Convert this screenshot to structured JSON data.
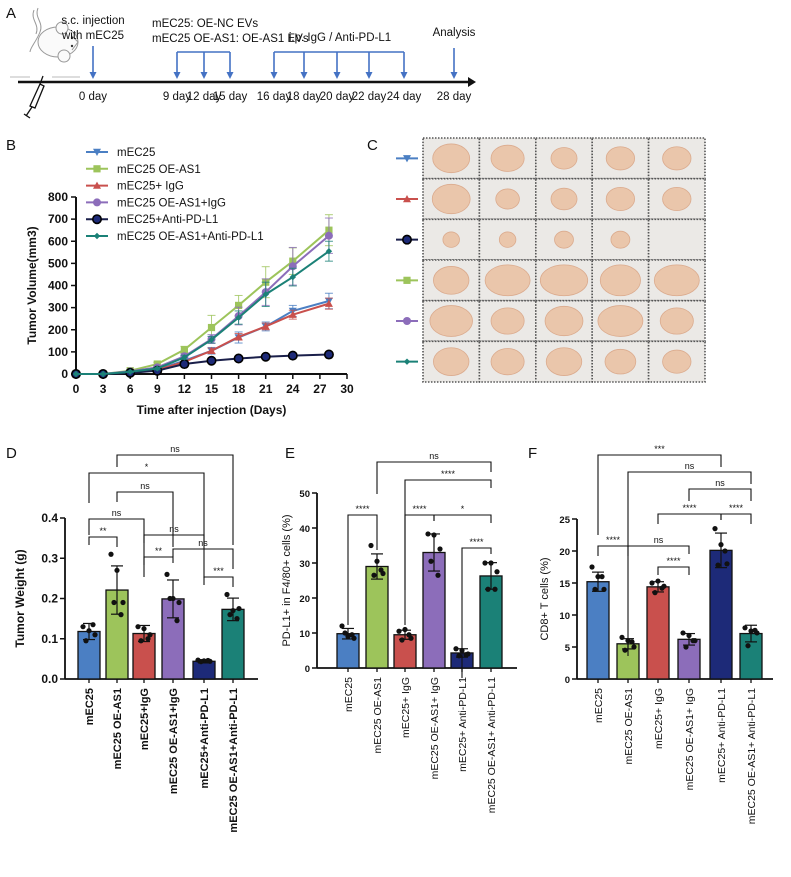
{
  "panels": {
    "a": "A",
    "b": "B",
    "c": "C",
    "d": "D",
    "e": "E",
    "f": "F"
  },
  "timeline": {
    "injection_label": [
      "s.c. injection",
      "with mEC25"
    ],
    "ev_label": [
      "mEC25: OE-NC EVs",
      "mEC25 OE-AS1: OE-AS1 EVs"
    ],
    "treatment_label": "i.p. IgG / Anti-PD-L1",
    "analysis_label": "Analysis",
    "days": [
      "0 day",
      "9 day",
      "12 day",
      "15 day",
      "16 day",
      "18 day",
      "20 day",
      "22 day",
      "24 day",
      "28 day"
    ],
    "arrow_color": "#4472c4"
  },
  "colors": {
    "mEC25": "#4b7fc3",
    "OE-AS1": "#9dc45b",
    "IgG": "#c9504d",
    "OE-AS1+IgG": "#8c6dba",
    "Anti": "#1d2a78",
    "OE-AS1+Anti": "#1b8177"
  },
  "chart_data": [
    {
      "type": "line",
      "panel": "B",
      "xlabel": "Time after injection (Days)",
      "ylabel": "Tumor Volume(mm3)",
      "xlim": [
        0,
        30
      ],
      "ylim": [
        0,
        800
      ],
      "xticks": [
        "0",
        "3",
        "6",
        "9",
        "12",
        "15",
        "18",
        "21",
        "24",
        "27",
        "30"
      ],
      "yticks": [
        "0",
        "100",
        "200",
        "300",
        "400",
        "500",
        "600",
        "700",
        "800"
      ],
      "legend": "top-left",
      "x": [
        0,
        3,
        6,
        9,
        12,
        15,
        18,
        21,
        24,
        28
      ],
      "series": [
        {
          "name": "mEC25",
          "marker": "triangle-down",
          "color": "#4b7fc3",
          "values": [
            0,
            0,
            8,
            20,
            60,
            105,
            165,
            215,
            285,
            330
          ],
          "sd": [
            0,
            0,
            3,
            6,
            12,
            15,
            25,
            20,
            25,
            35
          ]
        },
        {
          "name": "mEC25 OE-AS1",
          "marker": "square",
          "color": "#9dc45b",
          "values": [
            0,
            0,
            15,
            45,
            110,
            210,
            310,
            415,
            510,
            650
          ],
          "sd": [
            0,
            0,
            4,
            8,
            15,
            55,
            45,
            70,
            60,
            70
          ]
        },
        {
          "name": "mEC25+ IgG",
          "marker": "triangle-up",
          "color": "#c9504d",
          "values": [
            0,
            0,
            6,
            18,
            55,
            105,
            168,
            215,
            268,
            318
          ],
          "sd": [
            0,
            0,
            3,
            5,
            10,
            12,
            15,
            15,
            20,
            25
          ]
        },
        {
          "name": "mEC25 OE-AS1+IgG",
          "marker": "circle",
          "color": "#8c6dba",
          "values": [
            0,
            0,
            12,
            30,
            80,
            158,
            262,
            370,
            487,
            625
          ],
          "sd": [
            0,
            0,
            4,
            8,
            12,
            20,
            40,
            60,
            85,
            80
          ]
        },
        {
          "name": "mEC25+Anti-PD-L1",
          "marker": "circle-dark",
          "color": "#1a1f4a",
          "values": [
            0,
            0,
            5,
            15,
            45,
            60,
            70,
            78,
            83,
            88
          ],
          "sd": [
            0,
            0,
            2,
            4,
            8,
            8,
            8,
            8,
            8,
            8
          ]
        },
        {
          "name": "mEC25 OE-AS1+Anti-PD-L1",
          "marker": "diamond",
          "color": "#1b8177",
          "values": [
            0,
            0,
            10,
            25,
            75,
            155,
            255,
            360,
            438,
            555
          ],
          "sd": [
            0,
            0,
            3,
            6,
            10,
            15,
            30,
            55,
            40,
            45
          ]
        }
      ]
    },
    {
      "type": "bar",
      "panel": "D",
      "ylabel": "Tumor Weight (g)",
      "ylim": [
        0,
        0.4
      ],
      "yticks": [
        "0.0",
        "0.1",
        "0.2",
        "0.3",
        "0.4"
      ],
      "categories": [
        "mEC25",
        "mEC25 OE-AS1",
        "mEC25+IgG",
        "mEC25 OE-AS1+IgG",
        "mEC25+Anti-PD-L1",
        "mEC25 OE-AS1+Anti-PD-L1"
      ],
      "values": [
        0.118,
        0.221,
        0.113,
        0.199,
        0.044,
        0.173
      ],
      "sd": [
        0.02,
        0.06,
        0.02,
        0.047,
        0.004,
        0.028
      ],
      "points": [
        [
          0.13,
          0.12,
          0.11,
          0.095,
          0.135
        ],
        [
          0.31,
          0.27,
          0.19,
          0.19,
          0.16
        ],
        [
          0.13,
          0.125,
          0.11,
          0.095,
          0.1
        ],
        [
          0.26,
          0.2,
          0.19,
          0.2,
          0.145
        ],
        [
          0.047,
          0.045,
          0.044,
          0.043,
          0.046
        ],
        [
          0.21,
          0.17,
          0.175,
          0.16,
          0.15
        ]
      ],
      "significance": [
        {
          "pair": [
            1,
            5
          ],
          "label": "ns"
        },
        {
          "pair": [
            0,
            4
          ],
          "label": "*"
        },
        {
          "pair": [
            1,
            3
          ],
          "label": "ns"
        },
        {
          "pair": [
            0,
            2
          ],
          "label": "ns"
        },
        {
          "pair": [
            2,
            4
          ],
          "label": "ns"
        },
        {
          "pair": [
            0,
            1
          ],
          "label": "**"
        },
        {
          "pair": [
            3,
            5
          ],
          "label": "ns"
        },
        {
          "pair": [
            2,
            3
          ],
          "label": "**"
        },
        {
          "pair": [
            4,
            5
          ],
          "label": "***"
        }
      ]
    },
    {
      "type": "bar",
      "panel": "E",
      "ylabel": "PD-L1+ in F4/80+ cells (%)",
      "ylim": [
        0,
        50
      ],
      "yticks": [
        "0",
        "10",
        "20",
        "30",
        "40",
        "50"
      ],
      "categories": [
        "mEC25",
        "mEC25 OE-AS1",
        "mEC25+ IgG",
        "mEC25 OE-AS1+ IgG",
        "mEC25+ Anti-PD-L1",
        "mEC25 OE-AS1+ Anti-PD-L1"
      ],
      "values": [
        9.8,
        29.0,
        9.5,
        33.0,
        4.3,
        26.3
      ],
      "sd": [
        1.5,
        3.6,
        1.3,
        5.3,
        1.2,
        3.8
      ],
      "points": [
        [
          12,
          9,
          8.5,
          10,
          9.5
        ],
        [
          35,
          30.5,
          27,
          26.5,
          28
        ],
        [
          10.5,
          11,
          8.5,
          8,
          9.5
        ],
        [
          38.3,
          38,
          34,
          30.5,
          26.5
        ],
        [
          5.5,
          5,
          4,
          3.5,
          3.8
        ],
        [
          30,
          30,
          27.5,
          22.5,
          22.5
        ]
      ],
      "significance": [
        {
          "pair": [
            1,
            5
          ],
          "label": "ns"
        },
        {
          "pair": [
            2,
            5
          ],
          "label": "****"
        },
        {
          "pair": [
            0,
            1
          ],
          "label": "****"
        },
        {
          "pair": [
            2,
            3
          ],
          "label": "****"
        },
        {
          "pair": [
            3,
            5
          ],
          "label": "*"
        },
        {
          "pair": [
            4,
            5
          ],
          "label": "****"
        }
      ]
    },
    {
      "type": "bar",
      "panel": "F",
      "ylabel": "CD8+ T cells (%)",
      "ylim": [
        0,
        25
      ],
      "yticks": [
        "0",
        "5",
        "10",
        "15",
        "20",
        "25"
      ],
      "categories": [
        "mEC25",
        "mEC25 OE-AS1",
        "mEC25+ IgG",
        "mEC25 OE-AS1+ IgG",
        "mEC25+ Anti-PD-L1",
        "mEC25 OE-AS1+ Anti-PD-L1"
      ],
      "values": [
        15.2,
        5.5,
        14.4,
        6.2,
        20.1,
        7.1
      ],
      "sd": [
        1.5,
        0.8,
        0.8,
        0.9,
        2.7,
        1.3
      ],
      "points": [
        [
          17.5,
          16,
          14,
          14,
          16
        ],
        [
          6.5,
          6,
          5,
          4.5,
          5.8
        ],
        [
          15,
          15.3,
          14.5,
          13.5,
          14.2
        ],
        [
          7.2,
          6.8,
          6,
          5,
          6
        ],
        [
          23.5,
          21,
          18,
          17.8,
          20
        ],
        [
          8,
          7.5,
          7.2,
          5.2,
          7.6
        ]
      ],
      "significance": [
        {
          "pair": [
            0,
            4
          ],
          "label": "***"
        },
        {
          "pair": [
            1,
            5
          ],
          "label": "ns"
        },
        {
          "pair": [
            3,
            5
          ],
          "label": "ns"
        },
        {
          "pair": [
            2,
            4
          ],
          "label": "****"
        },
        {
          "pair": [
            4,
            5
          ],
          "label": "****"
        },
        {
          "pair": [
            1,
            3
          ],
          "label": "ns"
        },
        {
          "pair": [
            0,
            1
          ],
          "label": "****"
        },
        {
          "pair": [
            2,
            3
          ],
          "label": "****"
        }
      ]
    }
  ]
}
